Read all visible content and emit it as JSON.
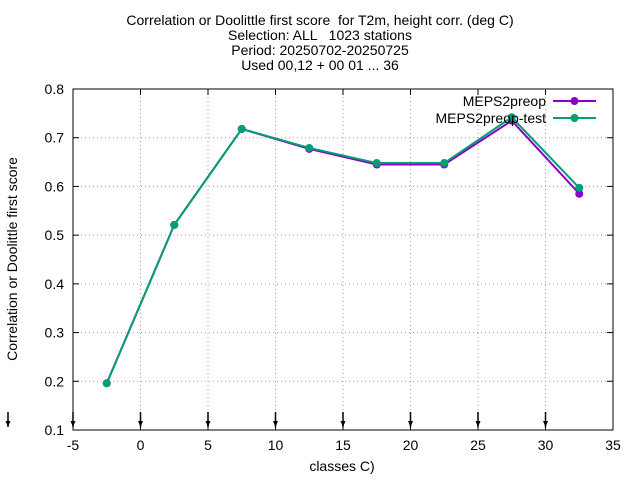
{
  "chart_data": {
    "type": "line",
    "title_lines": [
      "Correlation or Doolittle first score  for T2m, height corr. (deg C)",
      "Selection: ALL   1023 stations",
      "Period: 20250702-20250725",
      "Used 00,12 + 00 01 ... 36"
    ],
    "xlabel": "classes C)",
    "ylabel": "Correlation or Doolittle first score",
    "xlim": [
      -5,
      35
    ],
    "ylim": [
      0.1,
      0.8
    ],
    "xticks": [
      "-5",
      "0",
      "5",
      "10",
      "15",
      "20",
      "25",
      "30",
      "35"
    ],
    "yticks": [
      "0.1",
      "0.2",
      "0.3",
      "0.4",
      "0.5",
      "0.6",
      "0.7",
      "0.8"
    ],
    "grid": true,
    "legend_position": "top-right",
    "x": [
      -2.5,
      2.5,
      7.5,
      12.5,
      17.5,
      22.5,
      27.5,
      32.5
    ],
    "series": [
      {
        "name": "MEPS2preop",
        "color": "#8b00c8",
        "values": [
          0.196,
          0.521,
          0.718,
          0.677,
          0.645,
          0.645,
          0.735,
          0.585
        ]
      },
      {
        "name": "MEPS2preop-test",
        "color": "#009e73",
        "values": [
          0.196,
          0.521,
          0.718,
          0.679,
          0.648,
          0.648,
          0.742,
          0.597
        ]
      }
    ],
    "bottom_markers_x": [
      -5,
      0,
      5,
      10,
      15,
      20,
      25,
      30
    ]
  }
}
